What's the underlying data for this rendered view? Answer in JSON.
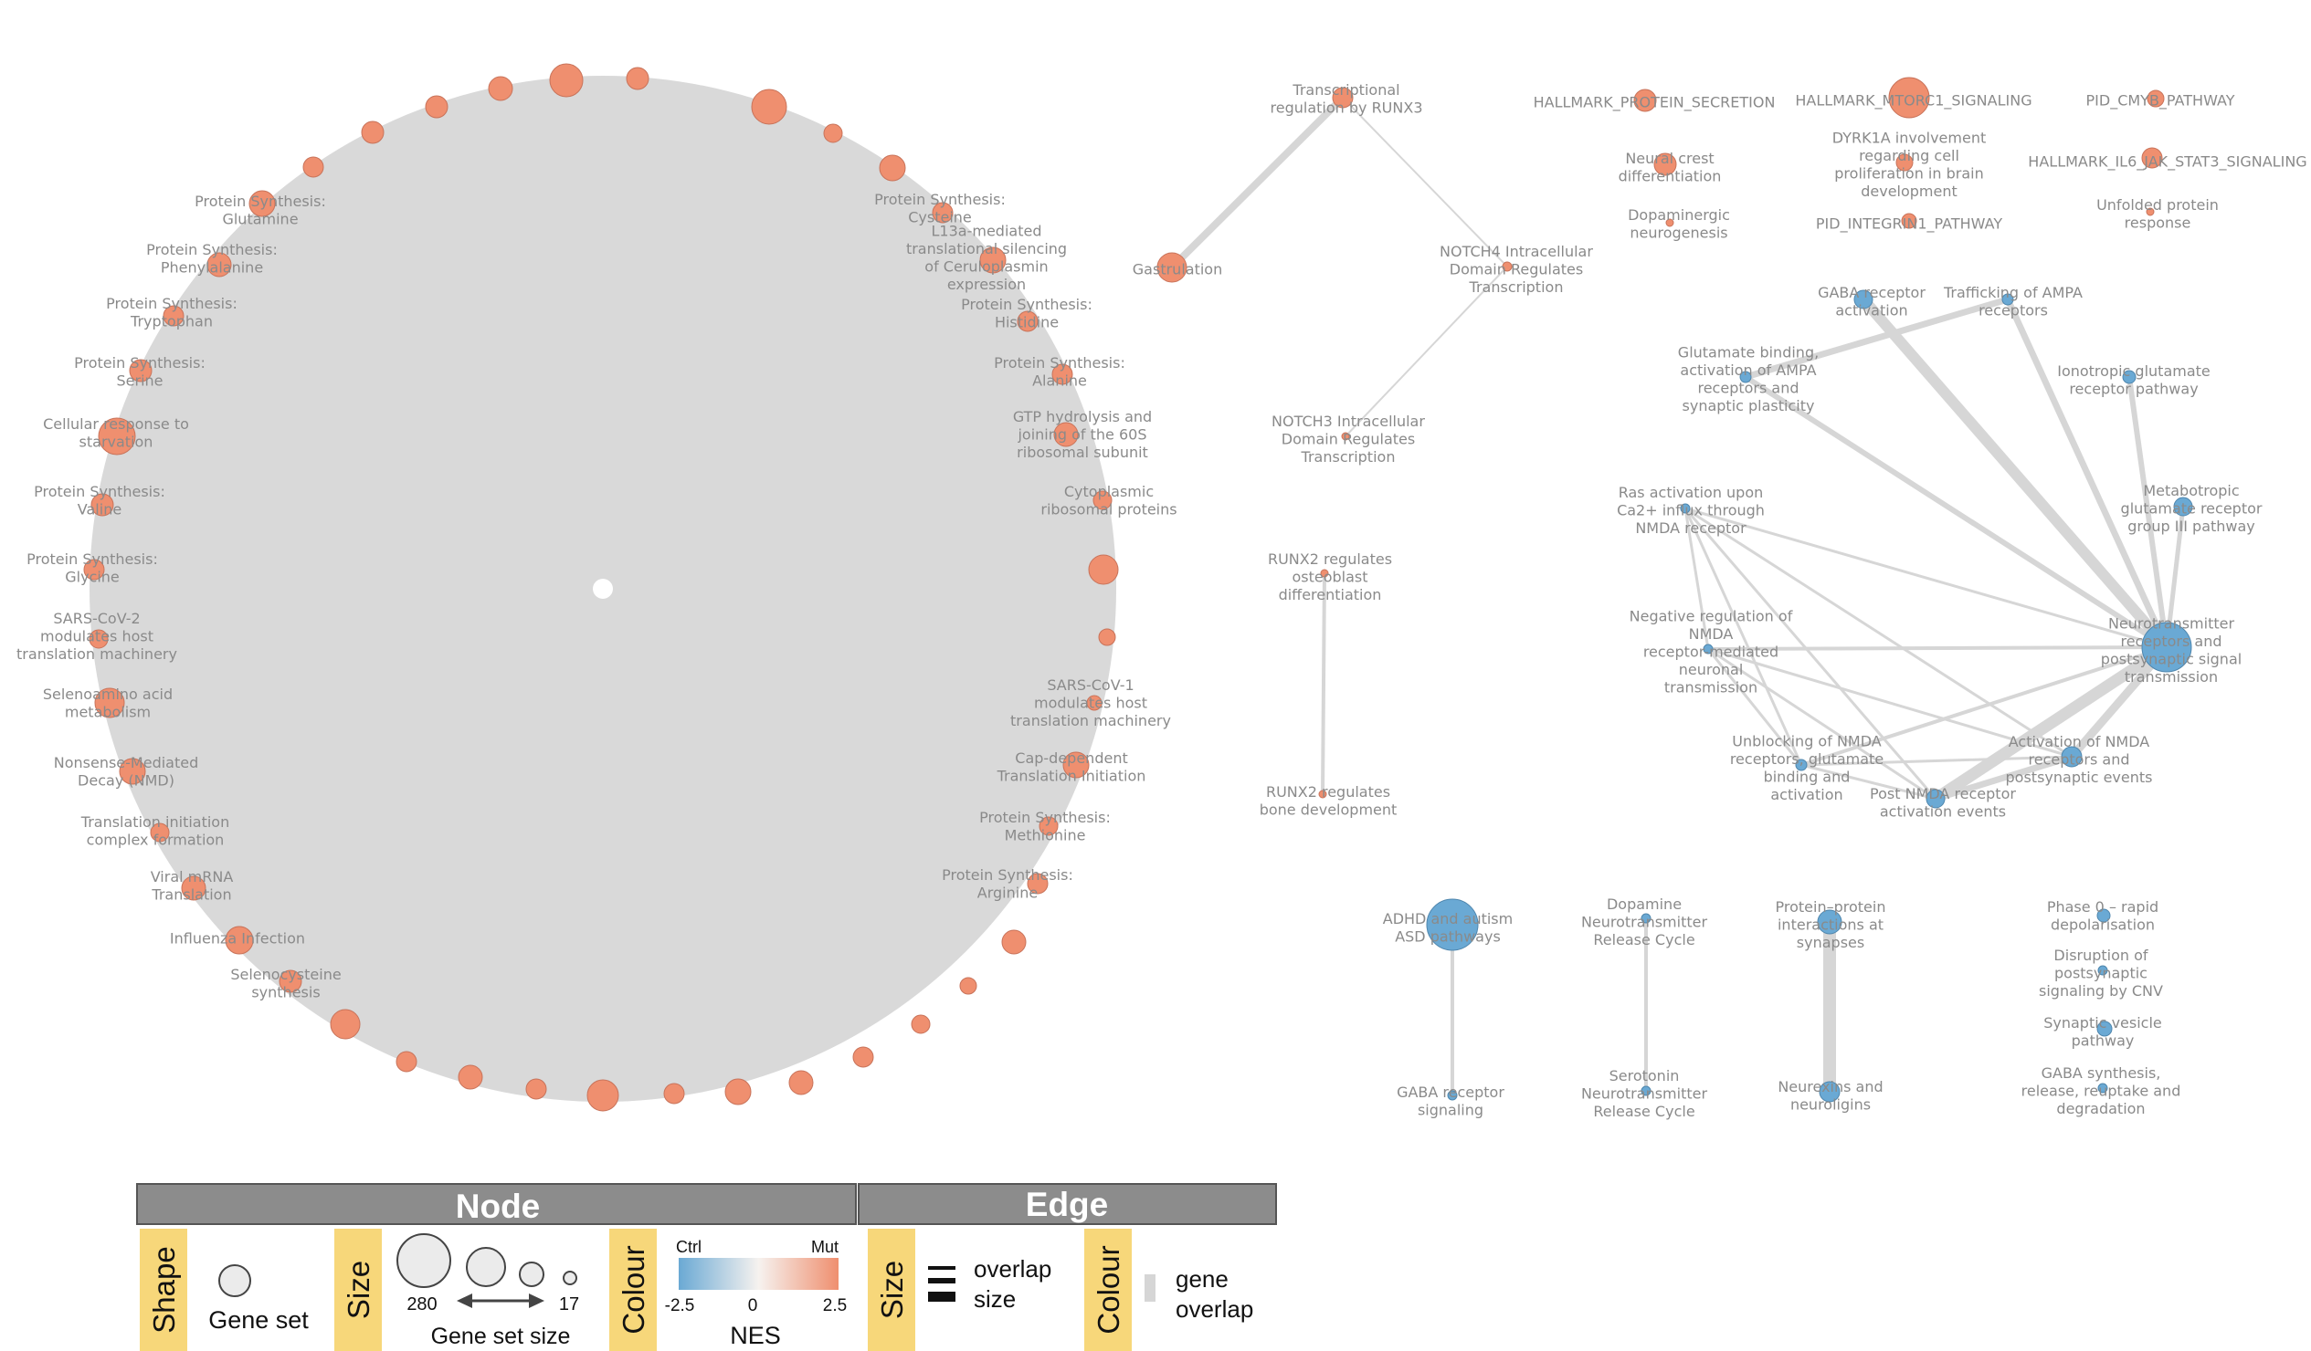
{
  "colors": {
    "positive": "#ef8f6f",
    "negative": "#6aa9d4",
    "edge": "#d6d6d6",
    "cluster_fill": "#d9d9d9",
    "label": "#8a8a8a",
    "legend_header": "#8c8c8c",
    "legend_tag": "#f7d77a"
  },
  "cluster_labels": [
    "Protein Synthesis:\nGlutamine",
    "Protein Synthesis:\nPhenylalanine",
    "Protein Synthesis:\nTryptophan",
    "Protein Synthesis:\nSerine",
    "Cellular response to\nstarvation",
    "Protein Synthesis:\nValine",
    "Protein Synthesis:\nGlycine",
    "SARS-CoV-2\nmodulates host\ntranslation machinery",
    "Selenoamino acid\nmetabolism",
    "Nonsense-Mediated\nDecay (NMD)",
    "Translation initiation\ncomplex formation",
    "Viral mRNA\nTranslation",
    "Influenza Infection",
    "Selenocysteine\nsynthesis",
    "Protein Synthesis:\nCysteine",
    "L13a-mediated\ntranslational silencing\nof Ceruloplasmin\nexpression",
    "Protein Synthesis:\nHistidine",
    "Protein Synthesis:\nAlanine",
    "GTP hydrolysis and\njoining of the 60S\nribosomal subunit",
    "Cytoplasmic\nribosomal proteins",
    "SARS-CoV-1\nmodulates host\ntranslation machinery",
    "Cap-dependent\nTranslation Initiation",
    "Protein Synthesis:\nMethionine",
    "Protein Synthesis:\nArginine"
  ],
  "network_labels": [
    "Transcriptional\nregulation by RUNX3",
    "Gastrulation",
    "NOTCH4 Intracellular\nDomain Regulates\nTranscription",
    "NOTCH3 Intracellular\nDomain Regulates\nTranscription",
    "RUNX2 regulates\nosteoblast\ndifferentiation",
    "RUNX2 regulates\nbone development",
    "HALLMARK_PROTEIN_SECRETION",
    "Neural crest\ndifferentiation",
    "Dopaminergic\nneurogenesis",
    "HALLMARK_MTORC1_SIGNALING",
    "DYRK1A involvement\nregarding cell\nproliferation in brain\ndevelopment",
    "PID_INTEGRIN1_PATHWAY",
    "PID_CMYB_PATHWAY",
    "HALLMARK_IL6_JAK_STAT3_SIGNALING",
    "Unfolded protein\nresponse",
    "GABA receptor\nactivation",
    "Trafficking of AMPA\nreceptors",
    "Glutamate binding,\nactivation of AMPA\nreceptors and\nsynaptic plasticity",
    "Ionotropic glutamate\nreceptor pathway",
    "Metabotropic\nglutamate receptor\ngroup III pathway",
    "Ras activation upon\nCa2+ influx through\nNMDA receptor",
    "Negative regulation of\nNMDA\nreceptor-mediated\nneuronal\ntransmission",
    "Neurotransmitter\nreceptors and\npostsynaptic signal\ntransmission",
    "Unblocking of NMDA\nreceptors, glutamate\nbinding and\nactivation",
    "Activation of NMDA\nreceptors and\npostsynaptic events",
    "Post NMDA receptor\nactivation events",
    "ADHD and autism\nASD pathways",
    "GABA receptor\nsignaling",
    "Dopamine\nNeurotransmitter\nRelease Cycle",
    "Serotonin\nNeurotransmitter\nRelease Cycle",
    "Protein–protein\ninteractions at\nsynapses",
    "Neurexins and\nneuroligins",
    "Phase 0 – rapid\ndepolarisation",
    "Disruption of\npostsynaptic\nsignaling by CNV",
    "Synaptic vesicle\npathway",
    "GABA synthesis,\nrelease, reuptake and\ndegradation"
  ],
  "legend": {
    "node_header": "Node",
    "edge_header": "Edge",
    "shape_tag": "Shape",
    "shape_label": "Gene set",
    "size_tag": "Size",
    "size_max": "280",
    "size_min": "17",
    "size_label": "Gene set size",
    "colour_tag": "Colour",
    "ctrl_label": "Ctrl",
    "mut_label": "Mut",
    "nes_min": "-2.5",
    "nes_mid": "0",
    "nes_max": "2.5",
    "nes_label": "NES",
    "edge_size_tag": "Size",
    "overlap_size_label": "overlap\nsize",
    "edge_colour_tag": "Colour",
    "gene_overlap_label": "gene\noverlap"
  }
}
